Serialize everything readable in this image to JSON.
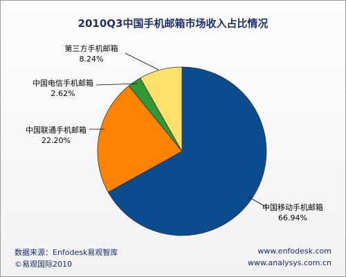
{
  "chart_data": {
    "type": "pie",
    "title": "2010Q3中国手机邮箱市场收入占比情况",
    "categories": [
      "中国移动手机邮箱",
      "中国联通手机邮箱",
      "中国电信手机邮箱",
      "第三方手机邮箱"
    ],
    "values": [
      66.94,
      22.2,
      2.62,
      8.24
    ],
    "value_labels": [
      "66.94%",
      "22.20%",
      "2.62%",
      "8.24%"
    ],
    "colors": [
      "#0b4c8f",
      "#ff8200",
      "#2f9a35",
      "#ffe16b"
    ]
  },
  "footer": {
    "source": "数据来源：Enfodesk易观智库",
    "copyright": "©易观国际2010",
    "site1": "www.enfodesk.com",
    "site2": "www.analysys.com.cn"
  }
}
